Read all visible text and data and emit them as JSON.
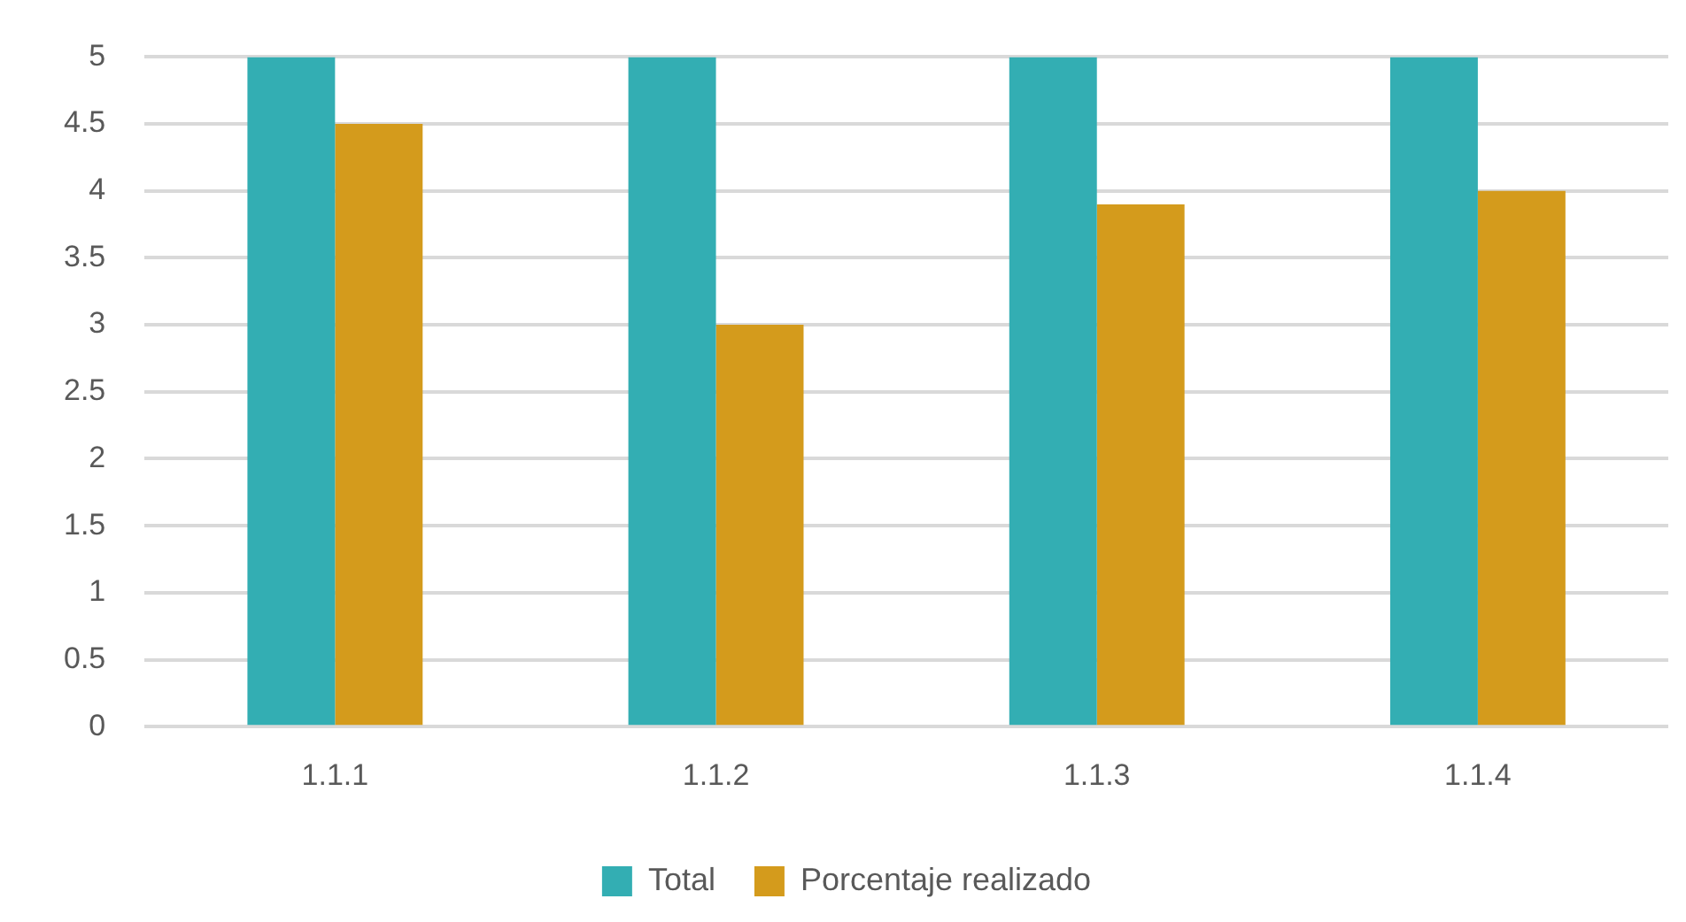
{
  "chart_data": {
    "type": "bar",
    "categories": [
      "1.1.1",
      "1.1.2",
      "1.1.3",
      "1.1.4"
    ],
    "series": [
      {
        "name": "Total",
        "color": "#33aeb3",
        "values": [
          5,
          5,
          5,
          5
        ]
      },
      {
        "name": "Porcentaje realizado",
        "color": "#d49b1c",
        "values": [
          4.5,
          3,
          3.9,
          4
        ]
      }
    ],
    "ylim": [
      0,
      5
    ],
    "yticks": [
      0,
      0.5,
      1,
      1.5,
      2,
      2.5,
      3,
      3.5,
      4,
      4.5,
      5
    ],
    "grid": "y",
    "legend": "bottom"
  }
}
